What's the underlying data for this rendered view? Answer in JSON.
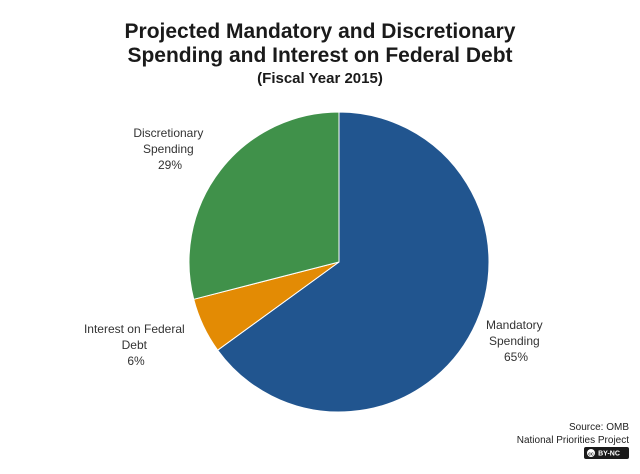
{
  "chart_data": {
    "type": "pie",
    "title_lines": [
      "Projected Mandatory and Discretionary",
      "Spending and Interest on Federal Debt"
    ],
    "subtitle": "(Fiscal Year 2015)",
    "slices": [
      {
        "label_lines": [
          "Mandatory",
          "Spending",
          "65%"
        ],
        "value": 65,
        "color": "#21558f"
      },
      {
        "label_lines": [
          "Interest on Federal",
          "Debt",
          "6%"
        ],
        "value": 6,
        "color": "#e38b04"
      },
      {
        "label_lines": [
          "Discretionary",
          "Spending",
          "29%"
        ],
        "value": 29,
        "color": "#40914a"
      }
    ],
    "start_angle_deg": 0,
    "direction": "clockwise"
  },
  "source": {
    "line1": "Source: OMB",
    "line2": "National Priorities Project"
  },
  "badge": {
    "text": "BY-NC",
    "icon": "creative-commons-icon"
  }
}
